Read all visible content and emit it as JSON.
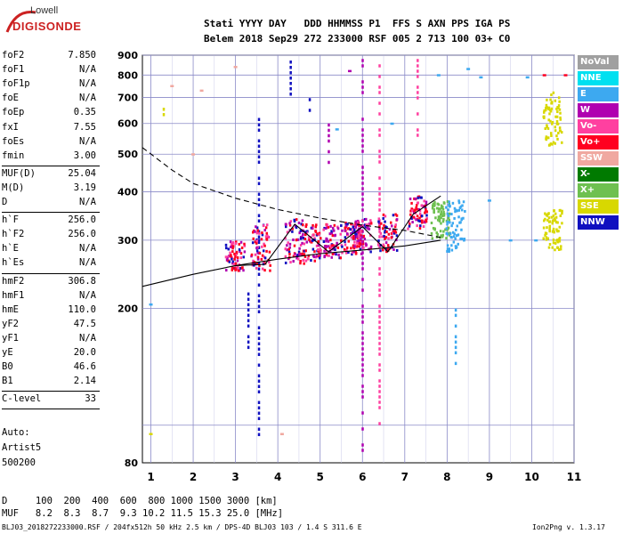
{
  "logo": {
    "top": "Lowell",
    "bottom": "DIGISONDE"
  },
  "header": {
    "labels_row": "Stati YYYY DAY   DDD HHMMSS P1  FFS S AXN PPS IGA PS",
    "values_row": "Belem 2018 Sep29 272 233000 RSF 005 2 713 100 03+ C0"
  },
  "params_group1": [
    {
      "label": "foF2",
      "value": "7.850"
    },
    {
      "label": "foF1",
      "value": "N/A"
    },
    {
      "label": "foF1p",
      "value": "N/A"
    },
    {
      "label": "foE",
      "value": "N/A"
    },
    {
      "label": "foEp",
      "value": "0.35"
    },
    {
      "label": "fxI",
      "value": "7.55"
    },
    {
      "label": "foEs",
      "value": "N/A"
    },
    {
      "label": "fmin",
      "value": "3.00"
    }
  ],
  "params_group2": [
    {
      "label": "MUF(D)",
      "value": "25.04"
    },
    {
      "label": "M(D)",
      "value": "3.19"
    },
    {
      "label": "D",
      "value": "N/A"
    }
  ],
  "params_group3": [
    {
      "label": "h`F",
      "value": "256.0"
    },
    {
      "label": "h`F2",
      "value": "256.0"
    },
    {
      "label": "h`E",
      "value": "N/A"
    },
    {
      "label": "h`Es",
      "value": "N/A"
    }
  ],
  "params_group4": [
    {
      "label": "hmF2",
      "value": "306.8"
    },
    {
      "label": "hmF1",
      "value": "N/A"
    },
    {
      "label": "hmE",
      "value": "110.0"
    },
    {
      "label": "yF2",
      "value": "47.5"
    },
    {
      "label": "yF1",
      "value": "N/A"
    },
    {
      "label": "yE",
      "value": "20.0"
    },
    {
      "label": "B0",
      "value": "46.6"
    },
    {
      "label": "B1",
      "value": "2.14"
    }
  ],
  "params_group5": [
    {
      "label": "C-level",
      "value": "33"
    }
  ],
  "auto_block": {
    "line1": "Auto:",
    "line2": "Artist5",
    "line3": "500200"
  },
  "legend": [
    {
      "label": "NoVal",
      "color": "#a0a0a0"
    },
    {
      "label": "NNE",
      "color": "#00e0f0"
    },
    {
      "label": "E",
      "color": "#3da9f0"
    },
    {
      "label": "W",
      "color": "#b000b0"
    },
    {
      "label": "Vo-",
      "color": "#ff40a0"
    },
    {
      "label": "Vo+",
      "color": "#ff0020"
    },
    {
      "label": "SSW",
      "color": "#f0a8a0"
    },
    {
      "label": "X-",
      "color": "#007a00"
    },
    {
      "label": "X+",
      "color": "#6ec050"
    },
    {
      "label": "SSE",
      "color": "#d8d800"
    },
    {
      "label": "NNW",
      "color": "#1010c0"
    }
  ],
  "bottom_table": {
    "row1": "D     100  200  400  600  800 1000 1500 3000 [km]",
    "row2": "MUF   8.2  8.3  8.7  9.3 10.2 11.5 15.3 25.0 [MHz]"
  },
  "footer": {
    "left": "BLJ03_2018272233000.RSF / 204fx512h 50 kHz 2.5 km / DPS-4D BLJ03 103 / 1.4 S 311.6 E",
    "right": "Ion2Png v. 1.3.17"
  },
  "chart_data": {
    "type": "scatter",
    "title": "",
    "xlabel": "",
    "ylabel": "",
    "xlim": [
      0.8,
      11.0
    ],
    "ylim": [
      80,
      900
    ],
    "y_scale": "log",
    "grid": true,
    "x_ticks": [
      "1",
      "2",
      "3",
      "4",
      "5",
      "6",
      "7",
      "8",
      "9",
      "10",
      "11"
    ],
    "y_ticks": [
      "80",
      "200",
      "300",
      "400",
      "500",
      "600",
      "700",
      "800",
      "900"
    ],
    "y_tick_values": [
      80,
      200,
      300,
      400,
      500,
      600,
      700,
      800,
      900
    ],
    "legend_position": "right",
    "profile_curve": {
      "description": "solid",
      "x": [
        0.8,
        2.0,
        3.0,
        4.0,
        5.0,
        6.0,
        7.0,
        7.85
      ],
      "y": [
        228,
        245,
        258,
        268,
        277,
        283,
        290,
        300
      ]
    },
    "dashed_curve": {
      "description": "dashed",
      "x": [
        0.8,
        1.5,
        2.0,
        3.0,
        4.0,
        5.0,
        6.0,
        7.0,
        7.85
      ],
      "y": [
        520,
        455,
        420,
        385,
        360,
        342,
        328,
        318,
        305
      ]
    },
    "trace_curve": {
      "description": "solid",
      "x": [
        3.0,
        3.7,
        4.4,
        5.2,
        6.0,
        6.6,
        7.2,
        7.85
      ],
      "y": [
        258,
        260,
        330,
        280,
        325,
        280,
        350,
        390
      ]
    },
    "echo_clusters": [
      {
        "x": 3.0,
        "ymin": 250,
        "ymax": 300,
        "color": "#ff0020"
      },
      {
        "x": 3.6,
        "ymin": 250,
        "ymax": 330,
        "color": "#ff0020"
      },
      {
        "x": 4.4,
        "ymin": 260,
        "ymax": 340,
        "color": "#b000b0"
      },
      {
        "x": 4.8,
        "ymin": 265,
        "ymax": 330,
        "color": "#ff0020"
      },
      {
        "x": 5.3,
        "ymin": 270,
        "ymax": 330,
        "color": "#b000b0"
      },
      {
        "x": 5.8,
        "ymin": 275,
        "ymax": 335,
        "color": "#ff0020"
      },
      {
        "x": 6.0,
        "ymin": 280,
        "ymax": 340,
        "color": "#b000b0"
      },
      {
        "x": 6.6,
        "ymin": 280,
        "ymax": 350,
        "color": "#ff0020"
      },
      {
        "x": 7.3,
        "ymin": 320,
        "ymax": 390,
        "color": "#ff0020"
      },
      {
        "x": 7.85,
        "ymin": 300,
        "ymax": 380,
        "color": "#6ec050"
      },
      {
        "x": 8.2,
        "ymin": 280,
        "ymax": 380,
        "color": "#3da9f0"
      },
      {
        "x": 10.5,
        "ymin": 520,
        "ymax": 720,
        "color": "#d8d800"
      },
      {
        "x": 10.5,
        "ymin": 280,
        "ymax": 360,
        "color": "#d8d800"
      }
    ],
    "vertical_streaks": [
      {
        "x": 3.3,
        "ymin": 150,
        "ymax": 220,
        "color": "#1010c0"
      },
      {
        "x": 3.55,
        "ymin": 80,
        "ymax": 620,
        "color": "#1010c0"
      },
      {
        "x": 4.3,
        "ymin": 680,
        "ymax": 900,
        "color": "#1010c0"
      },
      {
        "x": 4.75,
        "ymin": 640,
        "ymax": 720,
        "color": "#1010c0"
      },
      {
        "x": 5.2,
        "ymin": 480,
        "ymax": 600,
        "color": "#b000b0"
      },
      {
        "x": 6.0,
        "ymin": 80,
        "ymax": 880,
        "color": "#b000b0"
      },
      {
        "x": 6.4,
        "ymin": 100,
        "ymax": 880,
        "color": "#ff40a0"
      },
      {
        "x": 7.3,
        "ymin": 560,
        "ymax": 880,
        "color": "#ff40a0"
      },
      {
        "x": 8.2,
        "ymin": 140,
        "ymax": 200,
        "color": "#3da9f0"
      },
      {
        "x": 1.3,
        "ymin": 620,
        "ymax": 680,
        "color": "#d8d800"
      }
    ],
    "sparse_points": [
      {
        "x": 1.5,
        "y": 750,
        "color": "#f0a8a0"
      },
      {
        "x": 2.2,
        "y": 730,
        "color": "#f0a8a0"
      },
      {
        "x": 2.0,
        "y": 500,
        "color": "#f0a8a0"
      },
      {
        "x": 3.0,
        "y": 840,
        "color": "#f0a8a0"
      },
      {
        "x": 5.7,
        "y": 820,
        "color": "#b000b0"
      },
      {
        "x": 6.7,
        "y": 600,
        "color": "#3da9f0"
      },
      {
        "x": 7.8,
        "y": 800,
        "color": "#3da9f0"
      },
      {
        "x": 8.5,
        "y": 830,
        "color": "#3da9f0"
      },
      {
        "x": 8.8,
        "y": 790,
        "color": "#3da9f0"
      },
      {
        "x": 9.0,
        "y": 380,
        "color": "#3da9f0"
      },
      {
        "x": 9.5,
        "y": 300,
        "color": "#3da9f0"
      },
      {
        "x": 9.9,
        "y": 790,
        "color": "#3da9f0"
      },
      {
        "x": 10.3,
        "y": 800,
        "color": "#ff0020"
      },
      {
        "x": 10.8,
        "y": 800,
        "color": "#ff0020"
      },
      {
        "x": 10.1,
        "y": 300,
        "color": "#3da9f0"
      },
      {
        "x": 1.0,
        "y": 205,
        "color": "#3da9f0"
      },
      {
        "x": 1.0,
        "y": 95,
        "color": "#d8d800"
      },
      {
        "x": 5.4,
        "y": 580,
        "color": "#3da9f0"
      },
      {
        "x": 4.1,
        "y": 95,
        "color": "#f0a8a0"
      }
    ]
  }
}
